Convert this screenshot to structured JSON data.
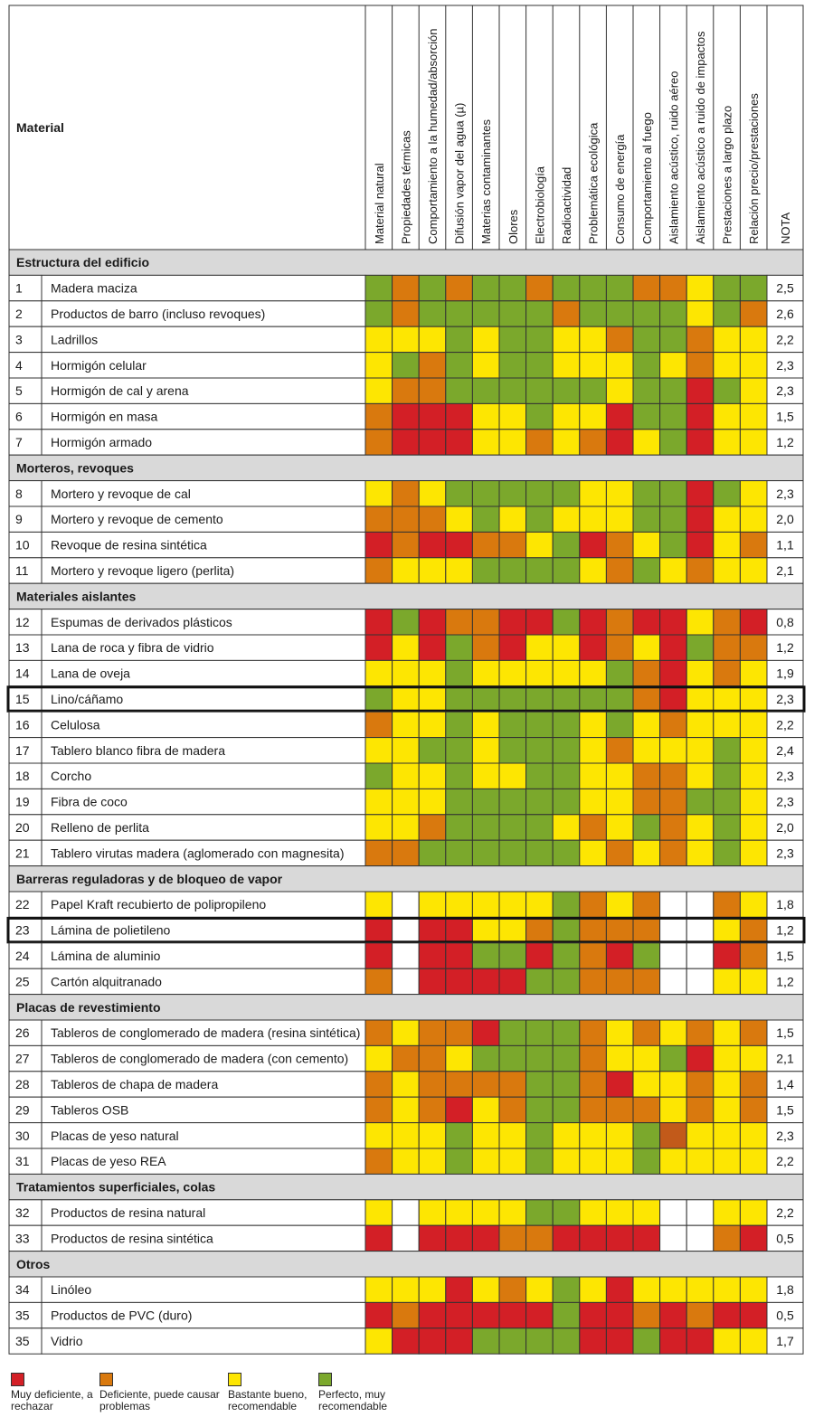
{
  "chart_data": {
    "type": "heatmap",
    "title": "",
    "material_label": "Material",
    "columns": [
      "Material natural",
      "Propiedades térmicas",
      "Comportamiento a la humedad/absorción",
      "Difusión vapor del agua (µ)",
      "Materias contaminantes",
      "Olores",
      "Electrobiología",
      "Radioactividad",
      "Problemática ecológica",
      "Consumo de energía",
      "Comportamiento al fuego",
      "Aislamiento acústico, ruido aéreo",
      "Aislamiento acústico a ruido de impactos",
      "Prestaciones a largo plazo",
      "Relación precio/prestaciones"
    ],
    "note_label": "NOTA",
    "rating_scale": {
      "R": "Muy deficiente, a rechazar",
      "O": "Deficiente, puede causar problemas",
      "Y": "Bastante bueno, recomendable",
      "G": "Perfecto, muy recomendable",
      "W": "",
      "D": ""
    },
    "colors": {
      "R": "#d31f26",
      "O": "#d9790e",
      "Y": "#fde602",
      "G": "#7ba82c",
      "W": "#ffffff",
      "D": "#c25a1a",
      "section_bg": "#d9d9d9",
      "grid": "#333333"
    },
    "highlighted_rows": [
      "15",
      "23"
    ],
    "groups": [
      {
        "title": "Estructura del edificio",
        "rows": [
          {
            "num": "1",
            "name": "Madera maciza",
            "ratings": "GOGOGGOGGGOOYGG",
            "note": "2,5"
          },
          {
            "num": "2",
            "name": "Productos de barro (incluso revoques)",
            "ratings": "GOGGGGGOGGGGYGO",
            "note": "2,6"
          },
          {
            "num": "3",
            "name": "Ladrillos",
            "ratings": "YYYGYGGYYOGGOYY",
            "note": "2,2"
          },
          {
            "num": "4",
            "name": "Hormigón celular",
            "ratings": "YGOGYGGYYYGYOYY",
            "note": "2,3"
          },
          {
            "num": "5",
            "name": "Hormigón de cal y arena",
            "ratings": "YOOGGGGGGYGGRGY",
            "note": "2,3"
          },
          {
            "num": "6",
            "name": "Hormigón en masa",
            "ratings": "ORRRYYGYYRGGRYY",
            "note": "1,5"
          },
          {
            "num": "7",
            "name": "Hormigón armado",
            "ratings": "ORRRYYOYORYGRYY",
            "note": "1,2"
          }
        ]
      },
      {
        "title": "Morteros, revoques",
        "rows": [
          {
            "num": "8",
            "name": "Mortero y revoque de cal",
            "ratings": "YOYGGGGGYYGGRGY",
            "note": "2,3"
          },
          {
            "num": "9",
            "name": "Mortero y revoque de cemento",
            "ratings": "OOOYGYGYYYGGRYY",
            "note": "2,0"
          },
          {
            "num": "10",
            "name": "Revoque de resina sintética",
            "ratings": "RORROOYGROYGRYO",
            "note": "1,1"
          },
          {
            "num": "11",
            "name": "Mortero y revoque ligero (perlita)",
            "ratings": "OYYYGGGGYOGYOYY",
            "note": "2,1"
          }
        ]
      },
      {
        "title": "Materiales aislantes",
        "rows": [
          {
            "num": "12",
            "name": "Espumas de derivados plásticos",
            "ratings": "RGROORRGRORRYOR",
            "note": "0,8"
          },
          {
            "num": "13",
            "name": "Lana de roca y fibra de vidrio",
            "ratings": "RYRGORYYROYRGOO",
            "note": "1,2"
          },
          {
            "num": "14",
            "name": "Lana de oveja",
            "ratings": "YYYGYYYYYGORYOY",
            "note": "1,9"
          },
          {
            "num": "15",
            "name": "Lino/cáñamo",
            "ratings": "GYYGGGGGGGORYYY",
            "note": "2,3"
          },
          {
            "num": "16",
            "name": "Celulosa",
            "ratings": "OYYGYGGGYGYOYYY",
            "note": "2,2"
          },
          {
            "num": "17",
            "name": "Tablero blanco fibra de madera",
            "ratings": "YYGGYGGGYOYYYGY",
            "note": "2,4"
          },
          {
            "num": "18",
            "name": "Corcho",
            "ratings": "GYYGYYGGYYOOYGY",
            "note": "2,3"
          },
          {
            "num": "19",
            "name": "Fibra de coco",
            "ratings": "YYYGGGGGYYOOGGY",
            "note": "2,3"
          },
          {
            "num": "20",
            "name": "Relleno de perlita",
            "ratings": "YYOGGGGYOYGOYGY",
            "note": "2,0"
          },
          {
            "num": "21",
            "name": "Tablero virutas madera (aglomerado con magnesita)",
            "ratings": "OOGGGGGGYOYOYGY",
            "note": "2,3"
          }
        ]
      },
      {
        "title": "Barreras reguladoras y de bloqueo de vapor",
        "rows": [
          {
            "num": "22",
            "name": "Papel Kraft recubierto de polipropileno",
            "ratings": "YWYYYYYGOYOWWOY",
            "note": "1,8"
          },
          {
            "num": "23",
            "name": "Lámina de polietileno",
            "ratings": "RWRRYYOGOOOWWYO",
            "note": "1,2"
          },
          {
            "num": "24",
            "name": "Lámina de aluminio",
            "ratings": "RWRRGGRGORGWWRO",
            "note": "1,5"
          },
          {
            "num": "25",
            "name": "Cartón alquitranado",
            "ratings": "OWRRRRGGOOOWWYY",
            "note": "1,2"
          }
        ]
      },
      {
        "title": "Placas de revestimiento",
        "rows": [
          {
            "num": "26",
            "name": "Tableros de conglomerado de madera (resina sintética)",
            "ratings": "OYOORGGGOYOYOYO",
            "note": "1,5"
          },
          {
            "num": "27",
            "name": "Tableros de conglomerado de madera (con cemento)",
            "ratings": "YOOYGGGGOYYGRYY",
            "note": "2,1"
          },
          {
            "num": "28",
            "name": "Tableros de chapa de madera",
            "ratings": "OYOOOOGGORYYOYO",
            "note": "1,4"
          },
          {
            "num": "29",
            "name": "Tableros OSB",
            "ratings": "OYORYOGGOOOYOYO",
            "note": "1,5"
          },
          {
            "num": "30",
            "name": "Placas de yeso natural",
            "ratings": "YYYGYYGYYYGDYYY",
            "note": "2,3"
          },
          {
            "num": "31",
            "name": "Placas de yeso REA",
            "ratings": "OYYGYYGYYYGYYYY",
            "note": "2,2"
          }
        ]
      },
      {
        "title": "Tratamientos superficiales, colas",
        "rows": [
          {
            "num": "32",
            "name": "Productos de resina natural",
            "ratings": "YWYYYYGGYYYWWYY",
            "note": "2,2"
          },
          {
            "num": "33",
            "name": "Productos de resina sintética",
            "ratings": "RWRRROORRRRWWOR",
            "note": "0,5"
          }
        ]
      },
      {
        "title": "Otros",
        "rows": [
          {
            "num": "34",
            "name": "Linóleo",
            "ratings": "YYYRYOYGYRYYYYY",
            "note": "1,8"
          },
          {
            "num": "35",
            "name": "Productos de PVC (duro)",
            "ratings": "RORRRRRGRRORORR",
            "note": "0,5"
          },
          {
            "num": "35",
            "name": "Vidrio",
            "ratings": "YRRRGGGGRRGRRYY",
            "note": "1,7"
          }
        ]
      }
    ]
  }
}
